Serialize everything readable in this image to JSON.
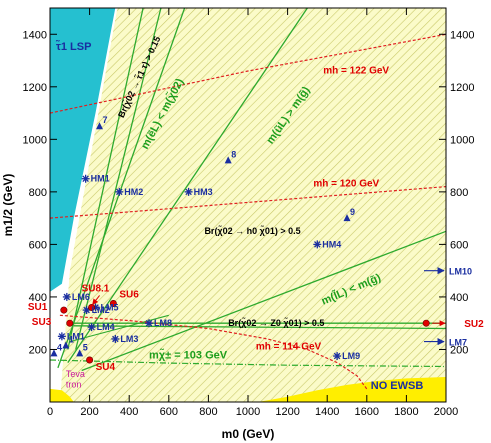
{
  "chart_data": {
    "type": "scatter",
    "xlabel": "m0 (GeV)",
    "ylabel": "m1/2 (GeV)",
    "xlim": [
      0,
      2000
    ],
    "ylim": [
      0,
      1500
    ],
    "x_ticks": [
      "0",
      "200",
      "400",
      "600",
      "800",
      "1000",
      "1200",
      "1400",
      "1600",
      "1800",
      "2000"
    ],
    "y_ticks": [
      "200",
      "400",
      "600",
      "800",
      "1000",
      "1200",
      "1400"
    ],
    "region_labels": [
      "τ̃1 LSP",
      "NO EWSB",
      "Teva",
      "tron"
    ],
    "higgs_contours": [
      {
        "label": "mh = 122 GeV",
        "points": [
          [
            0,
            1100
          ],
          [
            500,
            1180
          ],
          [
            1000,
            1260
          ],
          [
            1500,
            1330
          ],
          [
            2000,
            1400
          ]
        ]
      },
      {
        "label": "mh = 120 GeV",
        "points": [
          [
            0,
            700
          ],
          [
            500,
            730
          ],
          [
            1000,
            760
          ],
          [
            1500,
            790
          ],
          [
            2000,
            820
          ]
        ]
      },
      {
        "label": "mh = 114 GeV",
        "points": [
          [
            50,
            330
          ],
          [
            400,
            310
          ],
          [
            800,
            280
          ],
          [
            1100,
            240
          ],
          [
            1300,
            200
          ],
          [
            1450,
            150
          ],
          [
            1550,
            100
          ],
          [
            1600,
            50
          ]
        ]
      }
    ],
    "chargino_contour": {
      "label": "mχ̃± = 103 GeV",
      "points": [
        [
          0,
          160
        ],
        [
          600,
          148
        ],
        [
          1200,
          140
        ],
        [
          2000,
          135
        ]
      ]
    },
    "green_lines": [
      {
        "label": "m(ẽL) < m(χ̃02)",
        "points": [
          [
            40,
            130
          ],
          [
            680,
            1500
          ]
        ]
      },
      {
        "label": "m(ũL) > m(g̃)",
        "points": [
          [
            90,
            150
          ],
          [
            1300,
            1500
          ]
        ]
      },
      {
        "label": "m(l̃L) < m(g̃)",
        "points": [
          [
            160,
            120
          ],
          [
            2000,
            650
          ]
        ]
      },
      {
        "label": "",
        "points": [
          [
            120,
            300
          ],
          [
            2000,
            300
          ]
        ]
      },
      {
        "label": "",
        "points": [
          [
            120,
            290
          ],
          [
            2000,
            280
          ]
        ]
      }
    ],
    "branching_labels": [
      "Br(χ̃02 → τ̃1 τ) > 0.15",
      "Br(χ̃02 → h0 χ̃01) > 0.5",
      "Br(χ̃02 → Z0 χ̃01) > 0.5"
    ],
    "benchmarks_hm": [
      {
        "name": "HM1",
        "x": 180,
        "y": 850
      },
      {
        "name": "HM2",
        "x": 350,
        "y": 800
      },
      {
        "name": "HM3",
        "x": 700,
        "y": 800
      },
      {
        "name": "HM4",
        "x": 1350,
        "y": 600
      }
    ],
    "benchmarks_lm": [
      {
        "name": "LM1",
        "x": 60,
        "y": 250
      },
      {
        "name": "LM2",
        "x": 185,
        "y": 350
      },
      {
        "name": "LM3",
        "x": 330,
        "y": 240
      },
      {
        "name": "LM4",
        "x": 210,
        "y": 285
      },
      {
        "name": "LM5",
        "x": 230,
        "y": 360
      },
      {
        "name": "LM6",
        "x": 85,
        "y": 400
      },
      {
        "name": "LM8",
        "x": 500,
        "y": 300
      },
      {
        "name": "LM9",
        "x": 1450,
        "y": 175
      },
      {
        "name": "LM10",
        "x": 2000,
        "y": 500
      },
      {
        "name": "LM7",
        "x": 2000,
        "y": 230
      }
    ],
    "benchmarks_su": [
      {
        "name": "SU1",
        "x": 70,
        "y": 350
      },
      {
        "name": "SU2",
        "x": 1900,
        "y": 300
      },
      {
        "name": "SU3",
        "x": 100,
        "y": 300
      },
      {
        "name": "SU4",
        "x": 200,
        "y": 160
      },
      {
        "name": "SU6",
        "x": 320,
        "y": 375
      },
      {
        "name": "SU8.1",
        "x": 210,
        "y": 360
      }
    ],
    "numbered_points": [
      {
        "name": "1",
        "x": 80,
        "y": 215
      },
      {
        "name": "4",
        "x": 20,
        "y": 185
      },
      {
        "name": "5",
        "x": 150,
        "y": 185
      },
      {
        "name": "7",
        "x": 250,
        "y": 1050
      },
      {
        "name": "8",
        "x": 900,
        "y": 920
      },
      {
        "name": "9",
        "x": 1500,
        "y": 700
      }
    ]
  }
}
